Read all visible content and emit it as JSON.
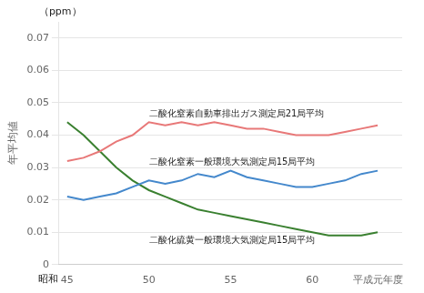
{
  "chart_data": {
    "type": "line",
    "x": [
      45,
      46,
      47,
      48,
      49,
      50,
      51,
      52,
      53,
      54,
      55,
      56,
      57,
      58,
      59,
      60,
      61,
      62,
      63,
      64
    ],
    "xlim": [
      44.5,
      65.5
    ],
    "xticks": [
      45,
      50,
      55,
      60,
      {
        "value": 64,
        "label": "平成元年度"
      }
    ],
    "ylim": [
      0,
      0.075
    ],
    "yticks": [
      0,
      0.01,
      0.02,
      0.03,
      0.04,
      0.05,
      0.06,
      0.07
    ],
    "ylabel": "年平均値",
    "annotations": [
      "（ppm）",
      "昭和"
    ],
    "grid": true,
    "series": [
      {
        "name": "二酸化窒素自動車排出ガス測定局21局平均",
        "color": "#e87878",
        "values": [
          0.032,
          0.033,
          0.035,
          0.038,
          0.04,
          0.044,
          0.043,
          0.044,
          0.043,
          0.044,
          0.043,
          0.042,
          0.042,
          0.041,
          0.04,
          0.04,
          0.04,
          0.041,
          0.042,
          0.043
        ]
      },
      {
        "name": "二酸化窒素一般環境大気測定局15局平均",
        "color": "#4488cc",
        "values": [
          0.021,
          0.02,
          0.021,
          0.022,
          0.024,
          0.026,
          0.025,
          0.026,
          0.028,
          0.027,
          0.029,
          0.027,
          0.026,
          0.025,
          0.024,
          0.024,
          0.025,
          0.026,
          0.028,
          0.029
        ]
      },
      {
        "name": "二酸化硫黄一般環境大気測定局15局平均",
        "color": "#3a8030",
        "values": [
          0.044,
          0.04,
          0.035,
          0.03,
          0.026,
          0.023,
          0.021,
          0.019,
          0.017,
          0.016,
          0.015,
          0.014,
          0.013,
          0.012,
          0.011,
          0.01,
          0.009,
          0.009,
          0.009,
          0.01
        ]
      }
    ]
  }
}
